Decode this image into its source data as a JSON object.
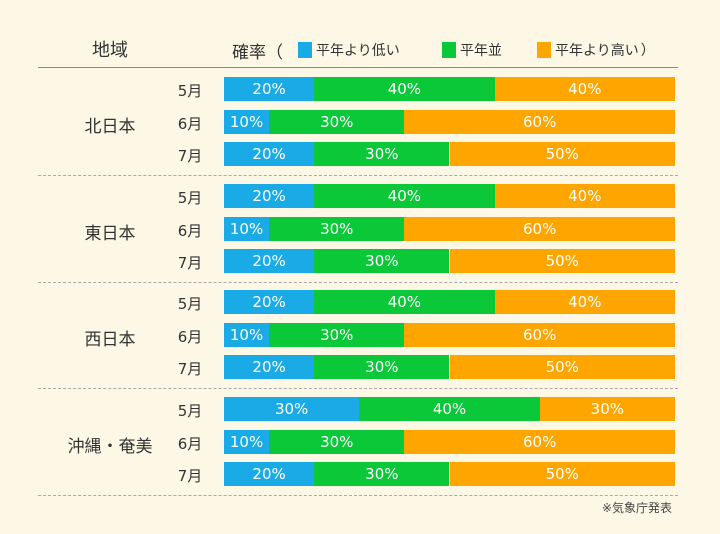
{
  "chart_data": {
    "type": "bar",
    "orientation": "horizontal-stacked-100",
    "header": {
      "region": "地域",
      "probability": "確率（",
      "close": "）"
    },
    "legend": [
      {
        "name": "平年より低い",
        "color": "#1aabe6"
      },
      {
        "name": "平年並",
        "color": "#0ac837"
      },
      {
        "name": "平年より高い",
        "color": "#ffa500"
      }
    ],
    "groups": [
      {
        "region": "北日本",
        "rows": [
          {
            "month": "5月",
            "values": [
              20,
              40,
              40
            ]
          },
          {
            "month": "6月",
            "values": [
              10,
              30,
              60
            ]
          },
          {
            "month": "7月",
            "values": [
              20,
              30,
              50
            ]
          }
        ]
      },
      {
        "region": "東日本",
        "rows": [
          {
            "month": "5月",
            "values": [
              20,
              40,
              40
            ]
          },
          {
            "month": "6月",
            "values": [
              10,
              30,
              60
            ]
          },
          {
            "month": "7月",
            "values": [
              20,
              30,
              50
            ]
          }
        ]
      },
      {
        "region": "西日本",
        "rows": [
          {
            "month": "5月",
            "values": [
              20,
              40,
              40
            ]
          },
          {
            "month": "6月",
            "values": [
              10,
              30,
              60
            ]
          },
          {
            "month": "7月",
            "values": [
              20,
              30,
              50
            ]
          }
        ]
      },
      {
        "region": "沖縄・奄美",
        "rows": [
          {
            "month": "5月",
            "values": [
              30,
              40,
              30
            ]
          },
          {
            "month": "6月",
            "values": [
              10,
              30,
              60
            ]
          },
          {
            "month": "7月",
            "values": [
              20,
              30,
              50
            ]
          }
        ]
      }
    ],
    "value_suffix": "%",
    "note": "※気象庁発表"
  }
}
